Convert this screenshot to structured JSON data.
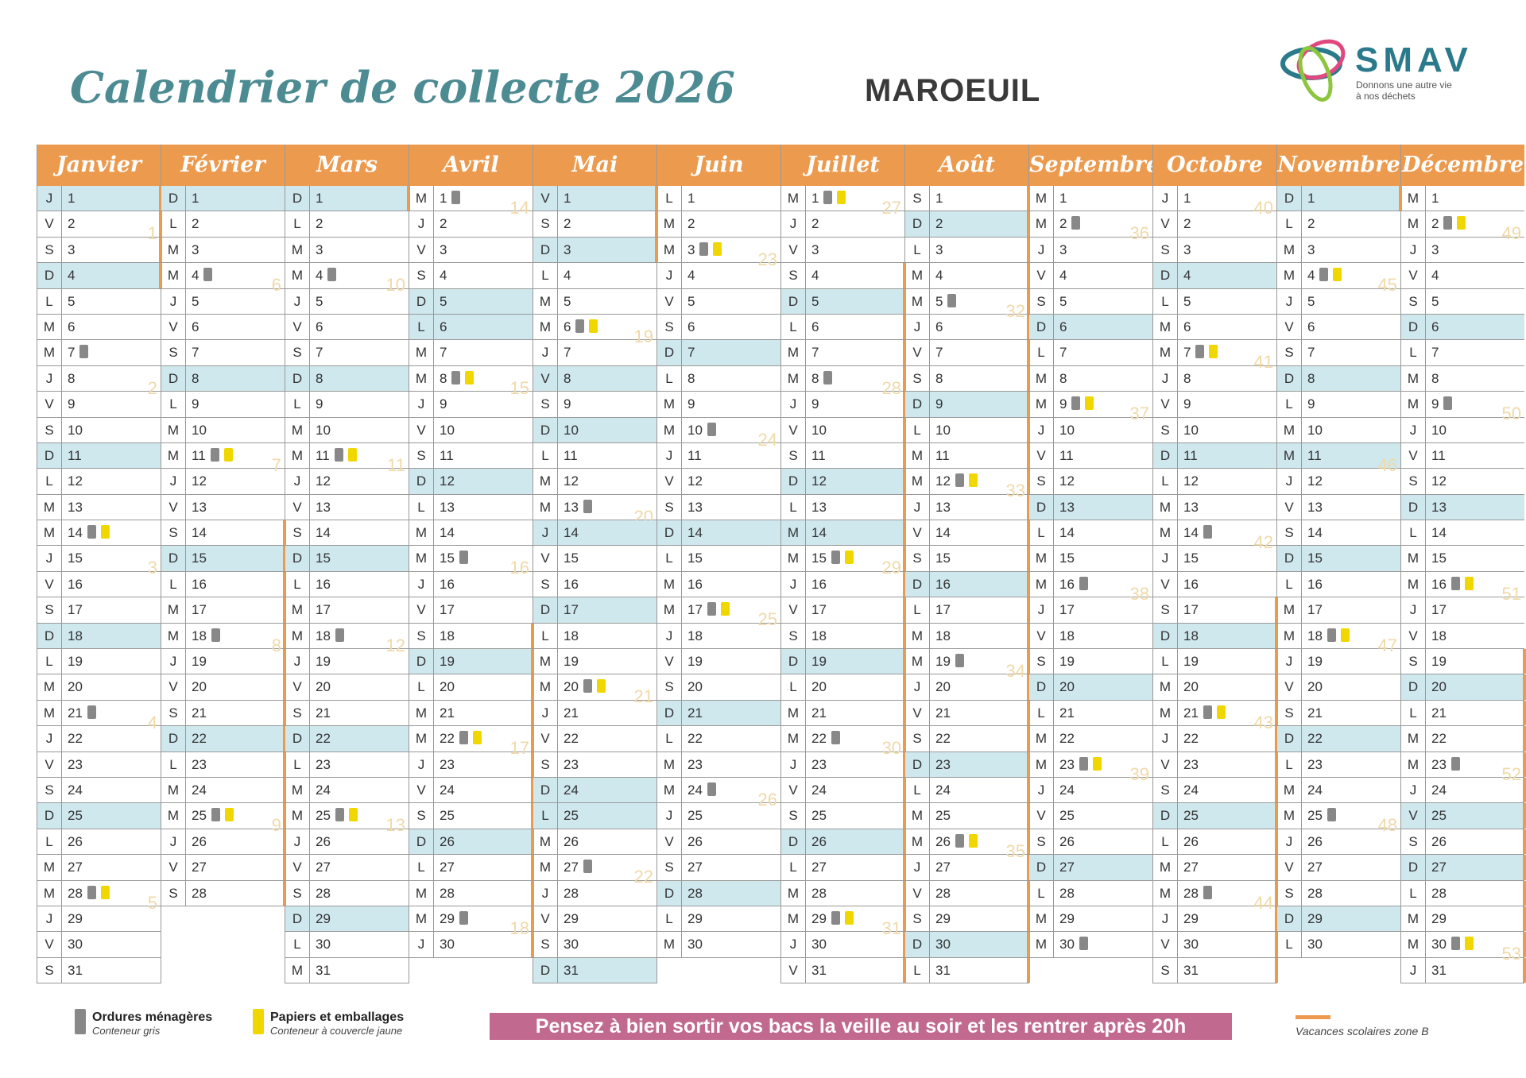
{
  "title": "Calendrier de collecte 2026",
  "city": "MAROEUIL",
  "logo": {
    "name": "SMAV",
    "tagline_1": "Donnons une autre vie",
    "tagline_2": "à nos déchets"
  },
  "year": 2026,
  "day_letters": [
    "D",
    "L",
    "M",
    "M",
    "J",
    "V",
    "S"
  ],
  "holidays": [
    [
      1,
      1
    ],
    [
      4,
      6
    ],
    [
      5,
      1
    ],
    [
      5,
      8
    ],
    [
      5,
      14
    ],
    [
      5,
      25
    ],
    [
      7,
      14
    ],
    [
      11,
      1
    ],
    [
      11,
      11
    ],
    [
      12,
      25
    ]
  ],
  "months": [
    {
      "name": "Janvier",
      "gray": [
        7,
        14,
        21,
        28
      ],
      "yellow": [
        14,
        28
      ],
      "weeks": {
        "2": 1,
        "8": 2,
        "15": 3,
        "21": 4,
        "28": 5
      },
      "vacation": [
        1,
        4
      ]
    },
    {
      "name": "Février",
      "gray": [
        4,
        11,
        18,
        25
      ],
      "yellow": [
        11,
        25
      ],
      "weeks": {
        "4": 6,
        "11": 7,
        "18": 8,
        "25": 9
      },
      "vacation": [
        14,
        28
      ]
    },
    {
      "name": "Mars",
      "gray": [
        4,
        11,
        18,
        25
      ],
      "yellow": [
        11,
        25
      ],
      "weeks": {
        "4": 10,
        "11": 11,
        "18": 12,
        "25": 13
      },
      "vacation": [
        1,
        1
      ]
    },
    {
      "name": "Avril",
      "gray": [
        1,
        8,
        15,
        22,
        29
      ],
      "yellow": [
        8,
        22
      ],
      "weeks": {
        "1": 14,
        "8": 15,
        "15": 16,
        "22": 17,
        "29": 18
      },
      "vacation": [
        18,
        30
      ]
    },
    {
      "name": "Mai",
      "gray": [
        6,
        13,
        20,
        27
      ],
      "yellow": [
        6,
        20
      ],
      "weeks": {
        "6": 19,
        "13": 20,
        "20": 21,
        "27": 22
      },
      "vacation": [
        1,
        3
      ]
    },
    {
      "name": "Juin",
      "gray": [
        3,
        10,
        17,
        24
      ],
      "yellow": [
        3,
        17
      ],
      "weeks": {
        "3": 23,
        "10": 24,
        "17": 25,
        "24": 26
      },
      "vacation": null
    },
    {
      "name": "Juillet",
      "gray": [
        1,
        8,
        15,
        22,
        29
      ],
      "yellow": [
        1,
        15,
        29
      ],
      "weeks": {
        "1": 27,
        "8": 28,
        "15": 29,
        "22": 30,
        "29": 31
      },
      "vacation": [
        4,
        31
      ]
    },
    {
      "name": "Août",
      "gray": [
        5,
        12,
        19,
        26
      ],
      "yellow": [
        12,
        26
      ],
      "weeks": {
        "5": 32,
        "12": 33,
        "19": 34,
        "26": 35
      },
      "vacation": [
        1,
        31
      ]
    },
    {
      "name": "Septembre",
      "gray": [
        2,
        9,
        16,
        23,
        30
      ],
      "yellow": [
        9,
        23
      ],
      "weeks": {
        "2": 36,
        "9": 37,
        "16": 38,
        "23": 39
      },
      "vacation": null
    },
    {
      "name": "Octobre",
      "gray": [
        7,
        14,
        21,
        28
      ],
      "yellow": [
        7,
        21
      ],
      "weeks": {
        "1": 40,
        "7": 41,
        "14": 42,
        "21": 43,
        "28": 44
      },
      "vacation": [
        17,
        31
      ]
    },
    {
      "name": "Novembre",
      "gray": [
        4,
        18,
        25
      ],
      "yellow": [
        4,
        18
      ],
      "weeks": {
        "4": 45,
        "11": 46,
        "18": 47,
        "25": 48
      },
      "vacation": [
        1,
        1
      ]
    },
    {
      "name": "Décembre",
      "gray": [
        2,
        9,
        16,
        23,
        30
      ],
      "yellow": [
        2,
        16,
        30
      ],
      "weeks": {
        "2": 49,
        "9": 50,
        "16": 51,
        "23": 52,
        "30": 53
      },
      "vacation": [
        19,
        31
      ]
    }
  ],
  "legend": {
    "gray_title": "Ordures ménagères",
    "gray_sub": "Conteneur gris",
    "yellow_title": "Papiers et emballages",
    "yellow_sub": "Conteneur à couvercle jaune",
    "vacation": "Vacances scolaires zone B"
  },
  "banner": "Pensez à bien sortir vos bacs la veille au soir et les rentrer après 20h",
  "colors": {
    "header": "#ec9a4e",
    "highlight": "#cfe8ee",
    "banner": "#c2698f",
    "title": "#4d8b93"
  }
}
